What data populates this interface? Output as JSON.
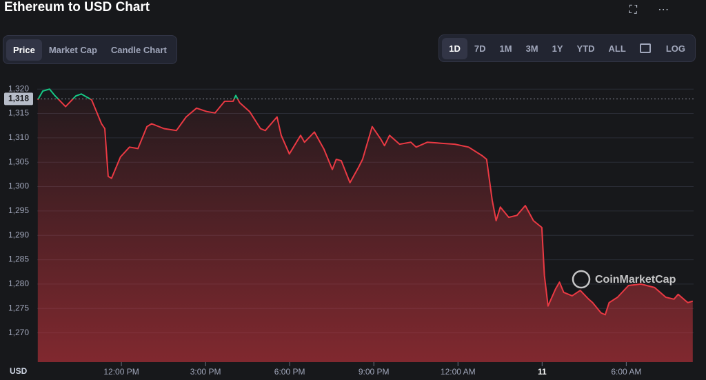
{
  "header": {
    "title": "Ethereum to USD Chart"
  },
  "tabs": [
    "Price",
    "Market Cap",
    "Candle Chart"
  ],
  "ranges": [
    "1D",
    "7D",
    "1M",
    "3M",
    "1Y",
    "YTD",
    "ALL"
  ],
  "log_button": "LOG",
  "watermark": "CoinMarketCap",
  "chart_data": {
    "type": "line",
    "ylabel": "USD",
    "x": [
      0.02,
      0.2,
      0.44,
      0.64,
      1.01,
      1.38,
      1.57,
      1.94,
      2.29,
      2.41,
      2.53,
      2.65,
      2.97,
      3.29,
      3.59,
      3.91,
      4.08,
      4.52,
      4.96,
      5.31,
      5.68,
      6.04,
      6.34,
      6.68,
      6.98,
      7.08,
      7.22,
      7.57,
      7.96,
      8.13,
      8.55,
      8.7,
      8.99,
      9.39,
      9.53,
      9.88,
      10.22,
      10.52,
      10.66,
      10.84,
      11.15,
      11.45,
      11.6,
      11.94,
      12.24,
      12.38,
      12.56,
      12.92,
      13.32,
      13.51,
      13.91,
      14.4,
      14.89,
      15.38,
      15.87,
      16.02,
      16.22,
      16.36,
      16.51,
      16.81,
      17.1,
      17.4,
      17.69,
      17.99,
      18.08,
      18.21,
      18.48,
      18.62,
      18.77,
      19.07,
      19.36,
      19.66,
      19.8,
      20.1,
      20.25,
      20.39,
      20.69,
      21.08,
      21.52,
      22.01,
      22.41,
      22.7,
      22.85,
      23.19,
      23.37
    ],
    "series": [
      {
        "name": "Price",
        "up_color": "#16c784",
        "down_color": "#ea3943",
        "values": [
          1317.8,
          1319.6,
          1320.0,
          1318.6,
          1316.4,
          1318.6,
          1319.0,
          1317.8,
          1312.9,
          1311.9,
          1302.1,
          1301.7,
          1306.1,
          1308.1,
          1307.8,
          1312.3,
          1312.9,
          1311.9,
          1311.5,
          1314.3,
          1316.1,
          1315.4,
          1315.1,
          1317.5,
          1317.5,
          1318.7,
          1317.2,
          1315.4,
          1311.9,
          1311.5,
          1314.3,
          1310.5,
          1306.7,
          1310.5,
          1309.1,
          1311.2,
          1307.7,
          1303.5,
          1305.6,
          1305.3,
          1300.8,
          1303.9,
          1305.6,
          1312.3,
          1309.8,
          1308.4,
          1310.5,
          1308.7,
          1309.1,
          1308.1,
          1309.1,
          1308.9,
          1308.7,
          1308.1,
          1306.3,
          1305.6,
          1297.2,
          1293.0,
          1295.8,
          1293.7,
          1294.1,
          1296.1,
          1293.0,
          1291.6,
          1281.8,
          1275.5,
          1279.0,
          1280.4,
          1278.3,
          1277.6,
          1278.7,
          1276.9,
          1276.2,
          1274.1,
          1273.7,
          1276.2,
          1277.3,
          1279.7,
          1280.0,
          1279.3,
          1277.3,
          1276.9,
          1277.9,
          1276.2,
          1276.5
        ]
      }
    ],
    "reference": {
      "value": 1318,
      "label": "1,318"
    },
    "xlim": [
      0,
      23.4
    ],
    "xticks": [
      {
        "value": 3,
        "label": "12:00 PM"
      },
      {
        "value": 6,
        "label": "3:00 PM"
      },
      {
        "value": 9,
        "label": "6:00 PM"
      },
      {
        "value": 12,
        "label": "9:00 PM"
      },
      {
        "value": 15,
        "label": "12:00 AM"
      },
      {
        "value": 18,
        "label": "11"
      },
      {
        "value": 21,
        "label": "6:00 AM"
      }
    ],
    "ylim": [
      1264,
      1323
    ],
    "yticks": [
      {
        "value": 1270,
        "label": "1,270"
      },
      {
        "value": 1275,
        "label": "1,275"
      },
      {
        "value": 1280,
        "label": "1,280"
      },
      {
        "value": 1285,
        "label": "1,285"
      },
      {
        "value": 1290,
        "label": "1,290"
      },
      {
        "value": 1295,
        "label": "1,295"
      },
      {
        "value": 1300,
        "label": "1,300"
      },
      {
        "value": 1305,
        "label": "1,305"
      },
      {
        "value": 1310,
        "label": "1,310"
      },
      {
        "value": 1315,
        "label": "1,315"
      },
      {
        "value": 1320,
        "label": "1,320"
      }
    ],
    "grid": true
  }
}
